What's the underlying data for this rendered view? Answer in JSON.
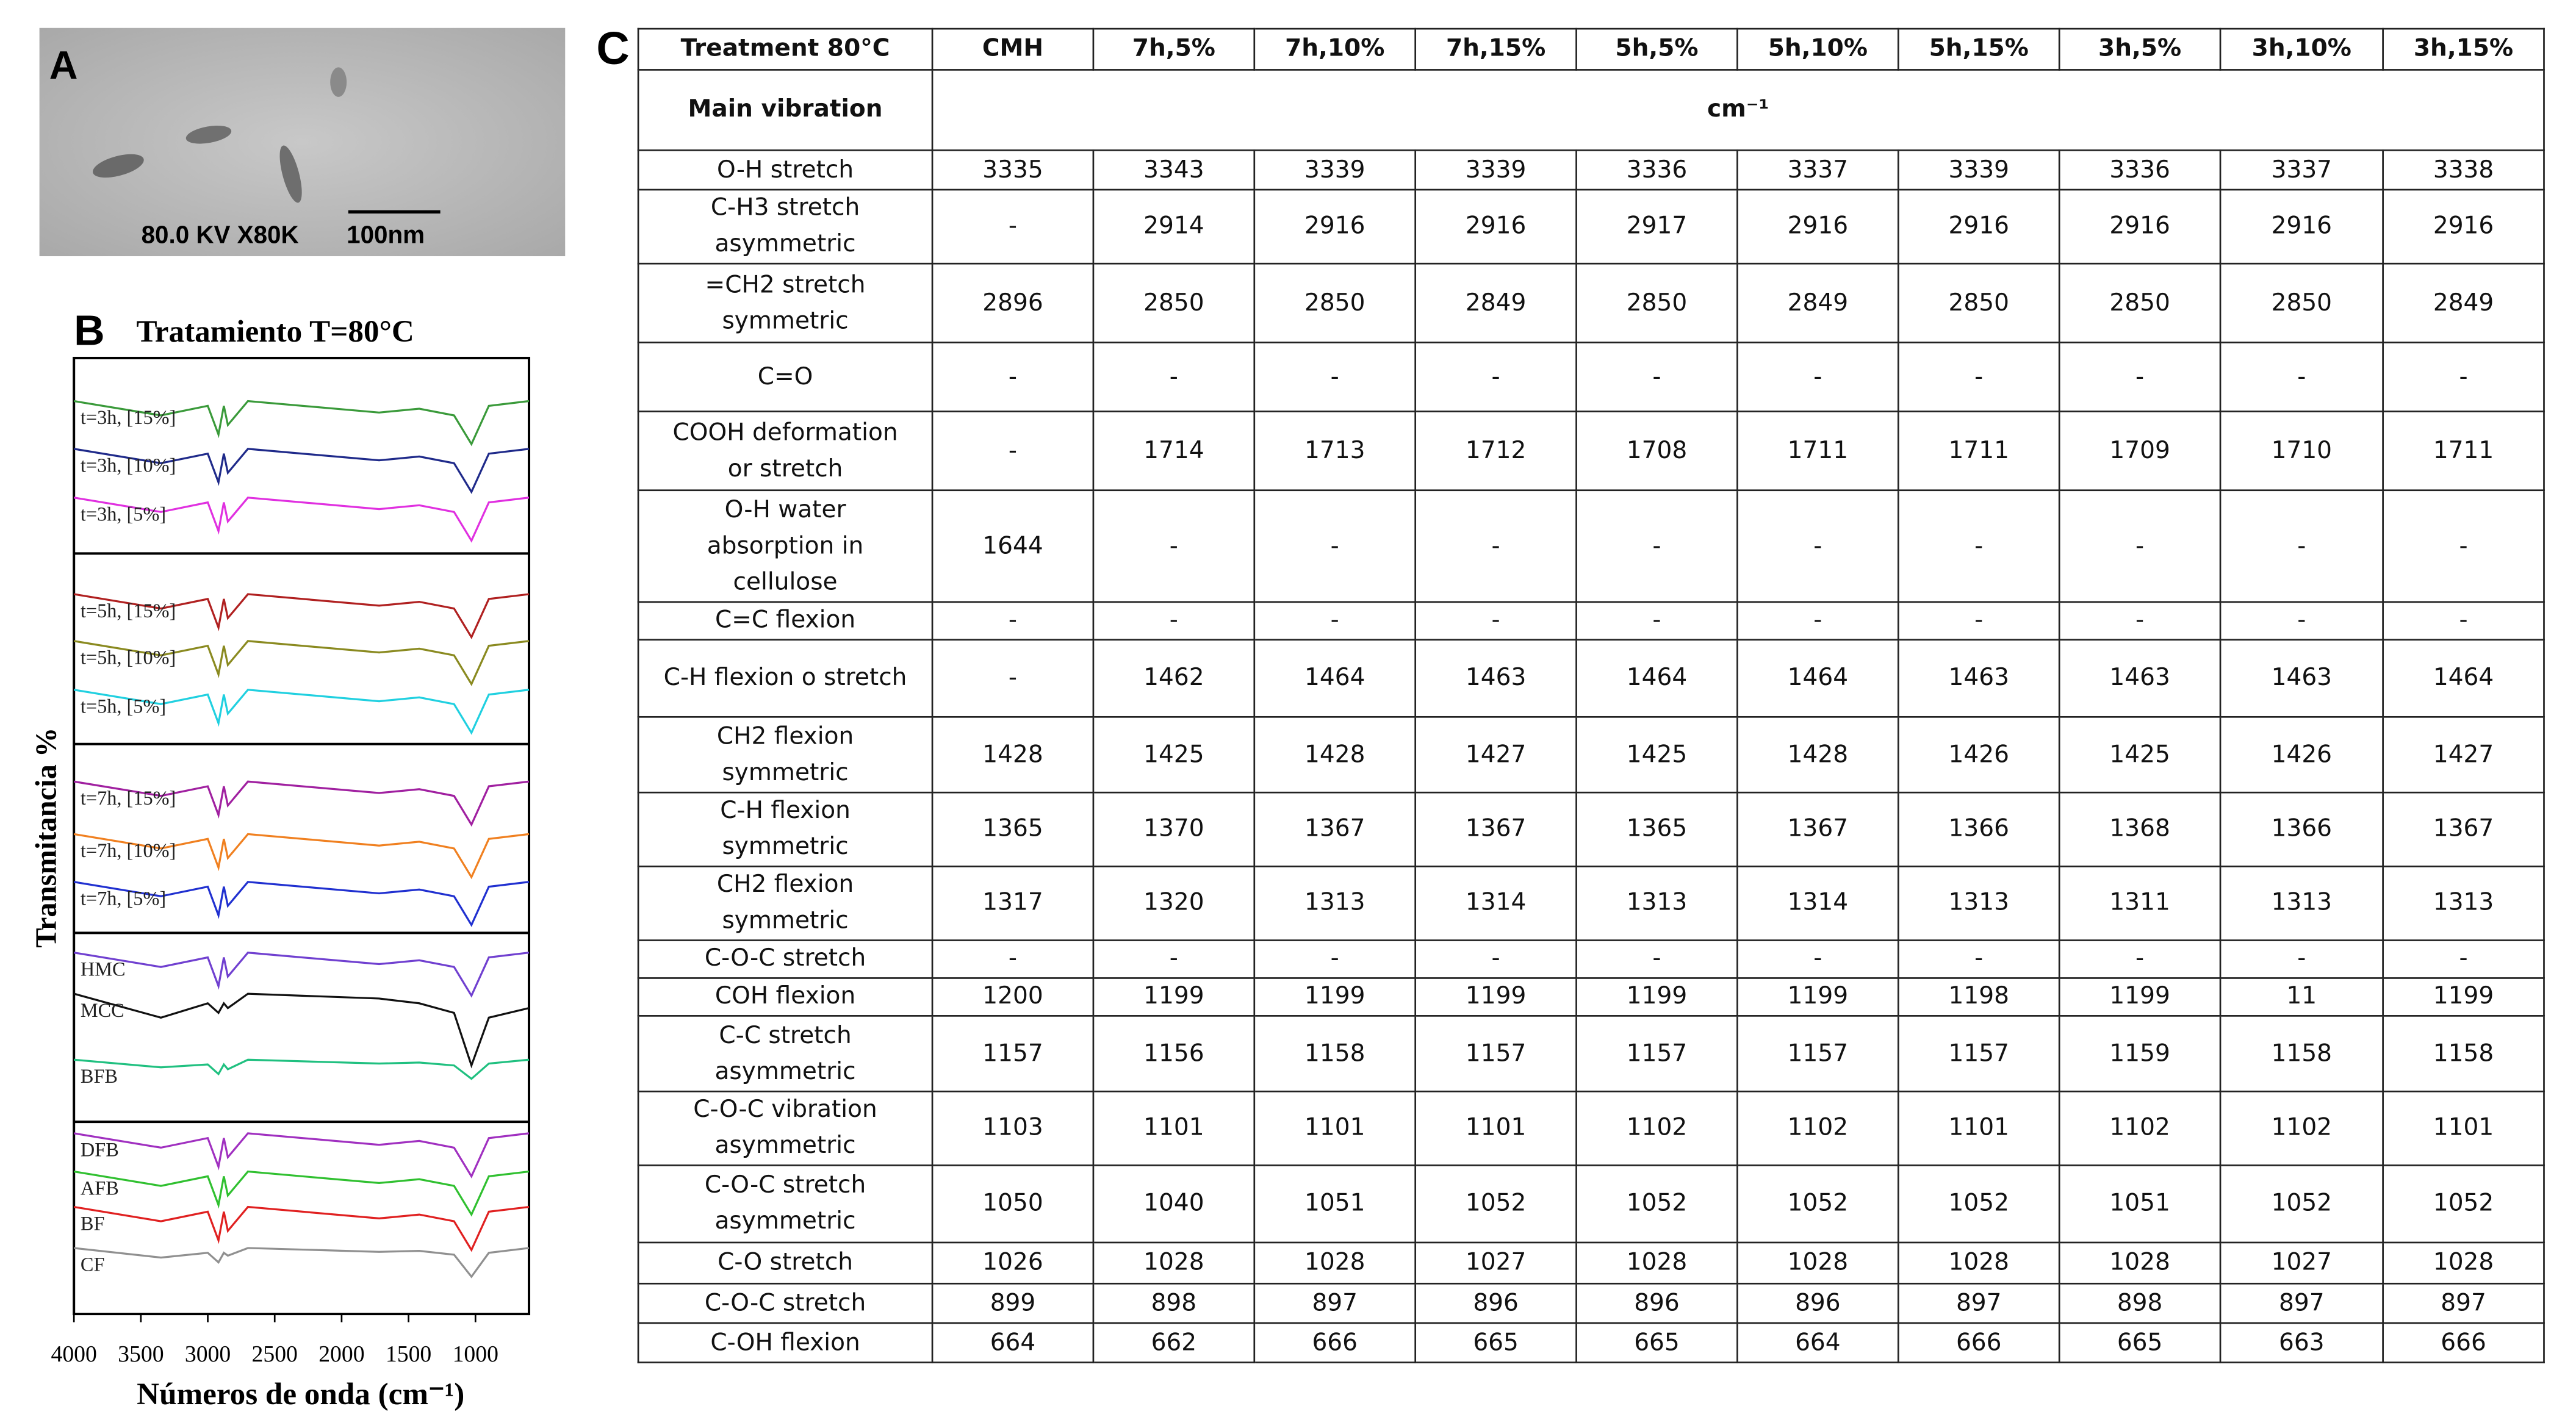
{
  "panel_a": {
    "label": "A",
    "caption": "80.0 KV X80K",
    "scale_bar": "100nm"
  },
  "panel_b_label": "B",
  "chart_data": {
    "type": "line",
    "title": "Tratamiento T=80°C",
    "x_label": "Números de onda (cm⁻¹)",
    "y_label": "Transmitancia %",
    "x": [
      4000,
      3350,
      3000,
      2920,
      2880,
      2850,
      2700,
      1720,
      1420,
      1160,
      1030,
      900,
      600
    ],
    "xlim": [
      4000,
      600
    ],
    "xticks": [
      4000,
      3500,
      3000,
      2500,
      2000,
      1500,
      1000
    ],
    "ylim": [
      0,
      100
    ],
    "series": [
      {
        "name": "t=3h, [15%]",
        "color": "#3a9a3a",
        "values": [
          95.5,
          94,
          95,
          92,
          95,
          93,
          95.5,
          94.3,
          94.7,
          94,
          91,
          95,
          95.5
        ]
      },
      {
        "name": "t=3h, [10%]",
        "color": "#1f2a8a",
        "values": [
          90.5,
          89,
          90,
          87,
          90,
          88,
          90.5,
          89.3,
          89.7,
          89,
          86,
          90,
          90.5
        ]
      },
      {
        "name": "t=3h, [5%]",
        "color": "#e030e0",
        "values": [
          85.4,
          83.9,
          84.9,
          81.9,
          84.9,
          82.9,
          85.4,
          84.2,
          84.6,
          83.9,
          80.9,
          84.9,
          85.4
        ]
      },
      {
        "name": "t=5h, [15%]",
        "color": "#b02020",
        "values": [
          75.3,
          73.8,
          74.8,
          71.8,
          74.8,
          72.8,
          75.3,
          74.1,
          74.5,
          73.8,
          70.8,
          74.8,
          75.3
        ]
      },
      {
        "name": "t=5h, [10%]",
        "color": "#8a8a20",
        "values": [
          70.4,
          68.9,
          69.9,
          66.9,
          69.9,
          67.9,
          70.4,
          69.2,
          69.6,
          68.9,
          65.9,
          69.9,
          70.4
        ]
      },
      {
        "name": "t=5h, [5%]",
        "color": "#20d0e0",
        "values": [
          65.3,
          63.8,
          64.8,
          61.8,
          64.8,
          62.8,
          65.3,
          64.1,
          64.5,
          63.8,
          60.8,
          64.8,
          65.3
        ]
      },
      {
        "name": "t=7h, [15%]",
        "color": "#a020a0",
        "values": [
          55.7,
          54.2,
          55.2,
          52.2,
          55.2,
          53.2,
          55.7,
          54.5,
          54.9,
          54.2,
          51.2,
          55.2,
          55.7
        ]
      },
      {
        "name": "t=7h, [10%]",
        "color": "#f08020",
        "values": [
          50.2,
          48.7,
          49.7,
          46.7,
          49.7,
          47.7,
          50.2,
          49,
          49.4,
          48.7,
          45.7,
          49.7,
          50.2
        ]
      },
      {
        "name": "t=7h, [5%]",
        "color": "#2030d0",
        "values": [
          45.2,
          43.7,
          44.7,
          41.7,
          44.7,
          42.7,
          45.2,
          44,
          44.4,
          43.7,
          40.7,
          44.7,
          45.2
        ]
      },
      {
        "name": "HMC",
        "color": "#7040d0",
        "values": [
          37.8,
          36.3,
          37.3,
          34.3,
          37.3,
          35.3,
          37.8,
          36.6,
          37,
          36.3,
          33.3,
          37.3,
          37.8
        ]
      },
      {
        "name": "MCC",
        "color": "#111111",
        "values": [
          33.5,
          31,
          32.5,
          31.5,
          32.5,
          32,
          33.5,
          33,
          32.5,
          31.5,
          26,
          31,
          32
        ]
      },
      {
        "name": "BFB",
        "color": "#20c080",
        "values": [
          26.6,
          25.8,
          26.1,
          25.1,
          26.1,
          25.6,
          26.6,
          26.2,
          26.3,
          26,
          24.6,
          26.2,
          26.6
        ]
      },
      {
        "name": "DFB",
        "color": "#a030c0",
        "values": [
          18.9,
          17.4,
          18.4,
          15.4,
          18.4,
          16.4,
          18.9,
          17.7,
          18.1,
          17.4,
          14.4,
          18.4,
          18.9
        ]
      },
      {
        "name": "AFB",
        "color": "#30c030",
        "values": [
          14.9,
          13.4,
          14.4,
          11.4,
          14.4,
          12.4,
          14.9,
          13.7,
          14.1,
          13.4,
          10.4,
          14.4,
          14.9
        ]
      },
      {
        "name": "BF",
        "color": "#e02020",
        "values": [
          11.2,
          9.7,
          10.7,
          7.7,
          10.7,
          8.7,
          11.2,
          10,
          10.4,
          9.7,
          6.7,
          10.7,
          11.2
        ]
      },
      {
        "name": "CF",
        "color": "#909090",
        "values": [
          6.9,
          5.9,
          6.4,
          5.4,
          6.4,
          6.1,
          6.9,
          6.5,
          6.6,
          6.2,
          3.9,
          6.4,
          6.9
        ]
      }
    ]
  },
  "panel_c_label": "C",
  "table": {
    "header": [
      "Treatment 80°C",
      "CMH",
      "7h,5%",
      "7h,10%",
      "7h,15%",
      "5h,5%",
      "5h,10%",
      "5h,15%",
      "3h,5%",
      "3h,10%",
      "3h,15%"
    ],
    "subheader": [
      "Main vibration",
      "cm⁻¹"
    ],
    "rows": [
      [
        "O-H stretch",
        3335,
        3343,
        3339,
        3339,
        3336,
        3337,
        3339,
        3336,
        3337,
        3338
      ],
      [
        "C-H3 stretch\nasymmetric",
        "-",
        2914,
        2916,
        2916,
        2917,
        2916,
        2916,
        2916,
        2916,
        2916
      ],
      [
        "=CH2 stretch\nsymmetric",
        2896,
        2850,
        2850,
        2849,
        2850,
        2849,
        2850,
        2850,
        2850,
        2849
      ],
      [
        "C=O",
        "-",
        "-",
        "-",
        "-",
        "-",
        "-",
        "-",
        "-",
        "-",
        "-"
      ],
      [
        "COOH deformation\nor stretch",
        "-",
        1714,
        1713,
        1712,
        1708,
        1711,
        1711,
        1709,
        1710,
        1711
      ],
      [
        "O-H water\nabsorption in\ncellulose",
        1644,
        "-",
        "-",
        "-",
        "-",
        "-",
        "-",
        "-",
        "-",
        "-"
      ],
      [
        "C=C flexion",
        "-",
        "-",
        "-",
        "-",
        "-",
        "-",
        "-",
        "-",
        "-",
        "-"
      ],
      [
        "C-H flexion o stretch",
        "-",
        1462,
        1464,
        1463,
        1464,
        1464,
        1463,
        1463,
        1463,
        1464
      ],
      [
        "CH2 flexion\nsymmetric",
        1428,
        1425,
        1428,
        1427,
        1425,
        1428,
        1426,
        1425,
        1426,
        1427
      ],
      [
        "C-H flexion\nsymmetric",
        1365,
        1370,
        1367,
        1367,
        1365,
        1367,
        1366,
        1368,
        1366,
        1367
      ],
      [
        "CH2 flexion\nsymmetric",
        1317,
        1320,
        1313,
        1314,
        1313,
        1314,
        1313,
        1311,
        1313,
        1313
      ],
      [
        "C-O-C stretch",
        "-",
        "-",
        "-",
        "-",
        "-",
        "-",
        "-",
        "-",
        "-",
        "-"
      ],
      [
        "COH flexion",
        1200,
        1199,
        1199,
        1199,
        1199,
        1199,
        1198,
        1199,
        11,
        1199
      ],
      [
        "C-C stretch\nasymmetric",
        1157,
        1156,
        1158,
        1157,
        1157,
        1157,
        1157,
        1159,
        1158,
        1158
      ],
      [
        "C-O-C vibration\nasymmetric",
        1103,
        1101,
        1101,
        1101,
        1102,
        1102,
        1101,
        1102,
        1102,
        1101
      ],
      [
        "C-O-C stretch\nasymmetric",
        1050,
        1040,
        1051,
        1052,
        1052,
        1052,
        1052,
        1051,
        1052,
        1052
      ],
      [
        "C-O stretch",
        1026,
        1028,
        1028,
        1027,
        1028,
        1028,
        1028,
        1028,
        1027,
        1028
      ],
      [
        "C-O-C stretch",
        899,
        898,
        897,
        896,
        896,
        896,
        897,
        898,
        897,
        897
      ],
      [
        "C-OH flexion",
        664,
        662,
        666,
        665,
        665,
        664,
        666,
        665,
        663,
        666
      ]
    ]
  }
}
